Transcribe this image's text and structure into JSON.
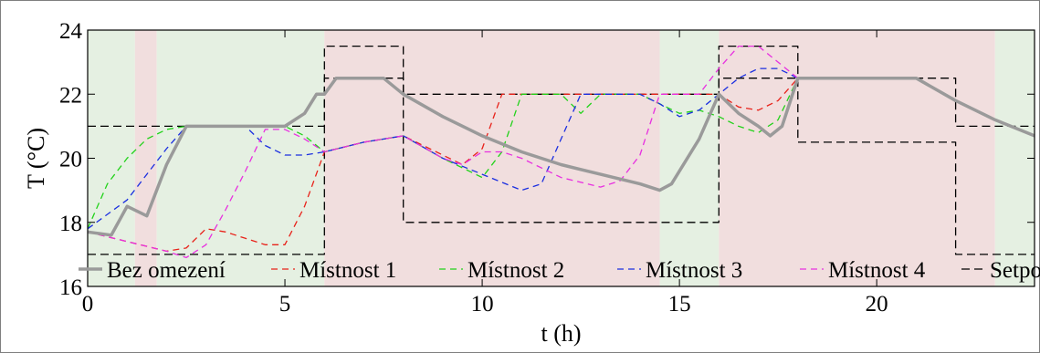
{
  "chart_data": {
    "type": "line",
    "xlabel": "t (h)",
    "ylabel": "T (°C)",
    "xlim": [
      0,
      24
    ],
    "ylim": [
      16,
      24
    ],
    "x_ticks": [
      0,
      5,
      10,
      15,
      20
    ],
    "y_ticks": [
      16,
      18,
      20,
      22,
      24
    ],
    "grid": false,
    "legend": {
      "placement": "bottom-right",
      "orientation": "horizontal"
    },
    "background_bands": [
      {
        "from": 0,
        "to": 1.2,
        "color": "#e5f0e2"
      },
      {
        "from": 1.2,
        "to": 1.75,
        "color": "#f1dede"
      },
      {
        "from": 1.75,
        "to": 6,
        "color": "#e5f0e2"
      },
      {
        "from": 6,
        "to": 14.5,
        "color": "#f1dede"
      },
      {
        "from": 14.5,
        "to": 16,
        "color": "#e5f0e2"
      },
      {
        "from": 16,
        "to": 23,
        "color": "#f1dede"
      },
      {
        "from": 23,
        "to": 24,
        "color": "#e5f0e2"
      }
    ],
    "series": [
      {
        "name": "Bez omezení",
        "color": "#9a9a9a",
        "style": "solid",
        "x": [
          0,
          0.6,
          1,
          1.5,
          2,
          2.5,
          3,
          4,
          5,
          5.5,
          5.8,
          6,
          6.3,
          7,
          7.5,
          8,
          9,
          10,
          11,
          12,
          13,
          14,
          14.5,
          14.8,
          15.5,
          16,
          16.5,
          17,
          17.3,
          17.6,
          18,
          19,
          20,
          20.5,
          21,
          22,
          23,
          24
        ],
        "values": [
          17.7,
          17.6,
          18.5,
          18.2,
          19.8,
          21,
          21,
          21,
          21,
          21.4,
          22.0,
          22.0,
          22.5,
          22.5,
          22.5,
          22.0,
          21.3,
          20.7,
          20.2,
          19.8,
          19.5,
          19.2,
          19.0,
          19.2,
          20.6,
          22.0,
          21.4,
          21.0,
          20.7,
          21.0,
          22.5,
          22.5,
          22.5,
          22.5,
          22.5,
          21.8,
          21.2,
          20.7
        ]
      },
      {
        "name": "Místnost 1",
        "color": "#e8221a",
        "style": "dashed",
        "x": [
          0,
          1,
          2,
          2.5,
          3,
          3.5,
          4,
          4.5,
          5,
          5.5,
          6,
          7,
          8,
          9,
          9.5,
          10,
          10.5,
          11,
          12,
          13,
          14,
          15,
          15.5,
          16,
          16.5,
          17,
          17.5,
          18,
          19,
          20,
          21,
          22,
          23,
          24
        ],
        "values": [
          17.7,
          17.4,
          17.1,
          17.2,
          17.8,
          17.7,
          17.5,
          17.3,
          17.3,
          18.5,
          20.2,
          20.5,
          20.7,
          20.1,
          19.8,
          20.3,
          22.0,
          22.0,
          22.0,
          22.0,
          22.0,
          22.0,
          22.0,
          22.0,
          21.6,
          21.5,
          21.8,
          22.5,
          22.5,
          22.5,
          22.5,
          21.8,
          21.2,
          20.7
        ]
      },
      {
        "name": "Místnost 2",
        "color": "#22d21a",
        "style": "dashed",
        "x": [
          0,
          0.5,
          1,
          1.5,
          2,
          2.5,
          3,
          4,
          5,
          5.5,
          6,
          7,
          8,
          9,
          10,
          10.5,
          11,
          11.5,
          12,
          12.5,
          13,
          14,
          15,
          15.5,
          16,
          16.5,
          17,
          17.5,
          18,
          19,
          20,
          21,
          22,
          23,
          24
        ],
        "values": [
          17.8,
          19.2,
          20.0,
          20.6,
          20.9,
          21.0,
          21.0,
          21.0,
          21.0,
          20.7,
          20.2,
          20.5,
          20.7,
          20.0,
          19.4,
          20.2,
          22.0,
          22.0,
          22.0,
          21.4,
          22.0,
          22.0,
          21.4,
          21.5,
          21.3,
          21.0,
          20.8,
          21.2,
          22.5,
          22.5,
          22.5,
          22.5,
          21.8,
          21.2,
          20.7
        ]
      },
      {
        "name": "Místnost 3",
        "color": "#1a2ee0",
        "style": "dashed",
        "x": [
          0,
          1,
          1.5,
          2,
          2.5,
          3,
          4,
          4.5,
          5,
          5.5,
          6,
          7,
          8,
          9,
          10,
          11,
          11.5,
          12,
          12.5,
          13,
          14,
          14.5,
          15,
          15.5,
          16,
          16.5,
          17,
          17.5,
          18,
          19,
          20,
          21,
          22,
          23,
          24
        ],
        "values": [
          17.8,
          18.7,
          19.5,
          20.3,
          21.0,
          21.0,
          21.0,
          20.4,
          20.1,
          20.1,
          20.2,
          20.5,
          20.7,
          20.0,
          19.5,
          19.0,
          19.2,
          20.6,
          22.0,
          22.0,
          22.0,
          21.7,
          21.3,
          21.5,
          22.0,
          22.5,
          22.8,
          22.8,
          22.5,
          22.5,
          22.5,
          22.5,
          21.8,
          21.2,
          20.7
        ]
      },
      {
        "name": "Místnost 4",
        "color": "#e830e0",
        "style": "dashed",
        "x": [
          0,
          1,
          2,
          2.5,
          3,
          3.5,
          4,
          4.5,
          5,
          5.5,
          6,
          7,
          8,
          9,
          9.5,
          10,
          10.5,
          11,
          12,
          13,
          13.5,
          14,
          14.5,
          15,
          15.5,
          16,
          16.5,
          17,
          17.5,
          18,
          19,
          20,
          21,
          22,
          23,
          24
        ],
        "values": [
          17.7,
          17.4,
          17.1,
          16.9,
          17.3,
          18.4,
          19.6,
          20.9,
          20.9,
          20.6,
          20.2,
          20.5,
          20.7,
          20.0,
          19.8,
          20.2,
          20.2,
          20.0,
          19.4,
          19.1,
          19.3,
          20.1,
          22.0,
          22.0,
          22.0,
          22.8,
          23.5,
          23.5,
          23.0,
          22.5,
          22.5,
          22.5,
          22.5,
          21.8,
          21.2,
          20.7
        ]
      },
      {
        "name": "Setpoint",
        "color": "#000000",
        "style": "dashed",
        "segments": [
          {
            "x": [
              0,
              6,
              6,
              8,
              8,
              16,
              16,
              22,
              22,
              24
            ],
            "values": [
              21,
              21,
              22.5,
              22.5,
              22,
              22,
              22.5,
              22.5,
              21,
              21
            ]
          },
          {
            "x": [
              0,
              6,
              6,
              8,
              8,
              16,
              16,
              18,
              18,
              22,
              22,
              24
            ],
            "values": [
              17,
              17,
              23.5,
              23.5,
              18,
              18,
              23.5,
              23.5,
              20.5,
              20.5,
              17,
              17
            ]
          }
        ]
      }
    ]
  }
}
